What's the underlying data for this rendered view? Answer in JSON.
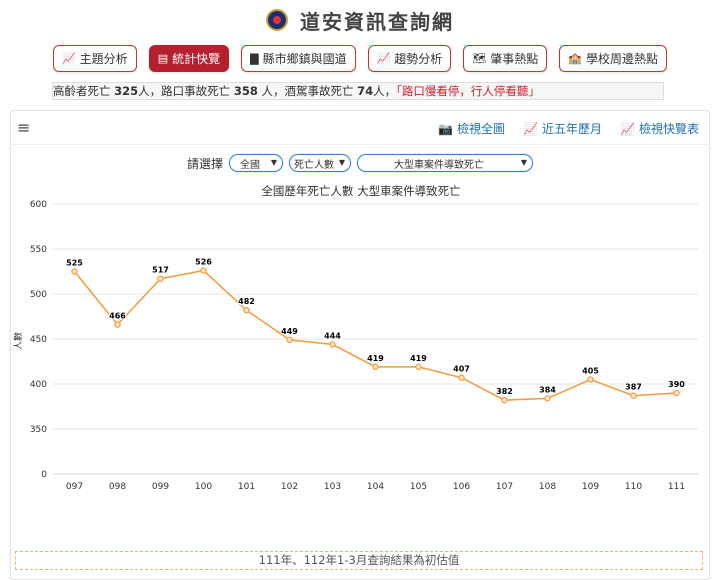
{
  "header": {
    "title": "道安資訊查詢網",
    "logo_icon": "police-badge-icon"
  },
  "nav": {
    "items": [
      {
        "label": "主題分析",
        "icon": "area-chart-icon",
        "active": false
      },
      {
        "label": "統計快覽",
        "icon": "list-card-icon",
        "active": true
      },
      {
        "label": "縣市鄉鎮與國道",
        "icon": "bar-chart-icon",
        "active": false
      },
      {
        "label": "趨勢分析",
        "icon": "area-chart-icon",
        "active": false
      },
      {
        "label": "肇事熱點",
        "icon": "map-icon",
        "active": false
      },
      {
        "label": "學校周邊熱點",
        "icon": "school-icon",
        "active": false
      }
    ]
  },
  "ticker": {
    "part1": "高齡者死亡 ",
    "v1": "325",
    "part2": "人，路口事故死亡 ",
    "v2": "358",
    "part3": " 人，酒駕事故死亡 ",
    "v3": "74",
    "part4": "人，",
    "slogan": "「路口慢看停，行人停看聽」"
  },
  "toolbar": {
    "snapshot": "檢視全圖",
    "five_year": "近五年歷月",
    "table": "檢視快覽表"
  },
  "selectors": {
    "prompt": "請選擇",
    "region": "全國",
    "metric": "死亡人數",
    "category": "大型車案件導致死亡"
  },
  "chart_data": {
    "type": "line",
    "title": "全國歷年死亡人數 大型車案件導致死亡",
    "ylabel": "人數",
    "xlabel": "",
    "categories": [
      "097",
      "098",
      "099",
      "100",
      "101",
      "102",
      "103",
      "104",
      "105",
      "106",
      "107",
      "108",
      "109",
      "110",
      "111"
    ],
    "values": [
      525,
      466,
      517,
      526,
      482,
      449,
      444,
      419,
      419,
      407,
      382,
      384,
      405,
      387,
      390
    ],
    "ylim": [
      0,
      600
    ],
    "yticks": [
      0,
      350,
      400,
      450,
      500,
      550,
      600
    ],
    "grid": true,
    "line_color": "#f39c38",
    "point_fill": "#fde8cf"
  },
  "footnote": "111年、112年1-3月查詢結果為初估值"
}
